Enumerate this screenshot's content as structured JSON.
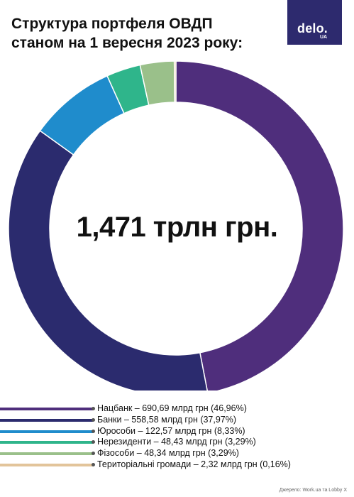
{
  "header": {
    "title_line1": "Структура портфеля ОВДП",
    "title_line2": "станом на 1 вересня 2023 року:"
  },
  "logo": {
    "brand": "delo.",
    "sub": "UA",
    "bg_color": "#2d2a6e"
  },
  "center_label": "1,471 трлн грн.",
  "source": "Джерело: Work.ua та Lobby X",
  "chart_data": {
    "type": "pie",
    "title": "Структура портфеля ОВДП станом на 1 вересня 2023 року:",
    "total_label": "1,471 трлн грн.",
    "unit": "млрд грн",
    "categories": [
      "Нацбанк",
      "Банки",
      "Юрособи",
      "Нерезиденти",
      "Фізособи",
      "Територіальні громади"
    ],
    "values": [
      690.69,
      558.58,
      122.57,
      48.43,
      48.34,
      2.32
    ],
    "percents": [
      46.96,
      37.97,
      8.33,
      3.29,
      3.29,
      0.16
    ],
    "colors": [
      "#4f2e7c",
      "#2b2b6e",
      "#1f8ccc",
      "#2fb58b",
      "#9ac08a",
      "#e2c49a"
    ],
    "legend": [
      "Нацбанк – 690,69 млрд грн (46,96%)",
      "Банки – 558,58 млрд грн (37,97%)",
      "Юрособи – 122,57 млрд грн (8,33%)",
      "Нерезиденти – 48,43 млрд грн (3,29%)",
      "Фізособи – 48,34 млрд грн (3,29%)",
      "Територіальні громади – 2,32 млрд грн (0,16%)"
    ],
    "legend_placement": "bottom"
  }
}
